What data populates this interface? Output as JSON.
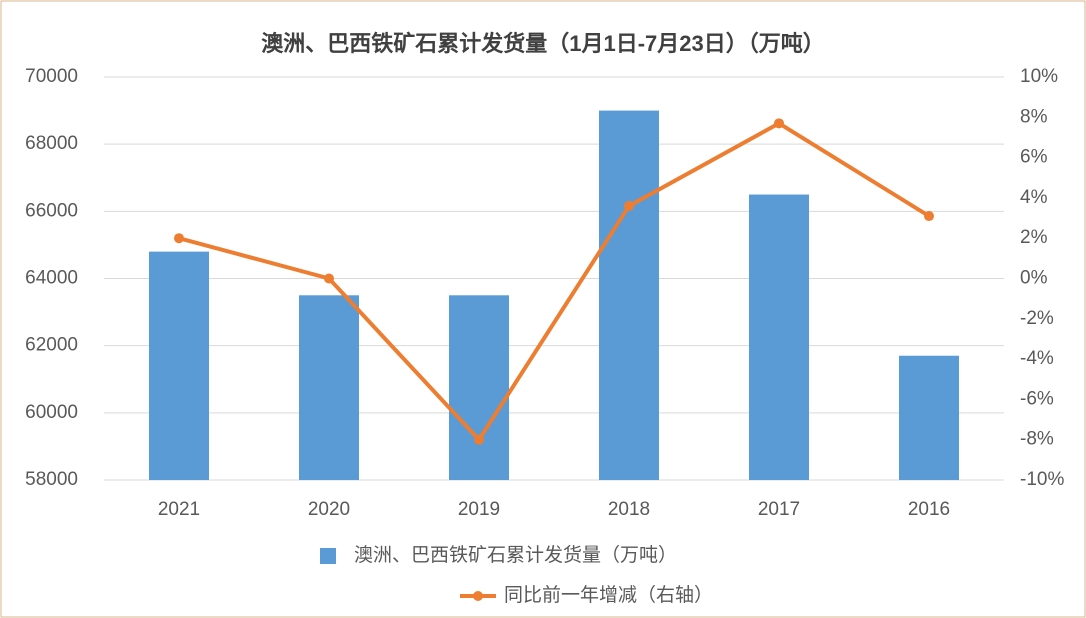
{
  "chart_data": {
    "type": "bar_line",
    "title": "澳洲、巴西铁矿石累计发货量（1月1日-7月23日）（万吨）",
    "categories": [
      "2021",
      "2020",
      "2019",
      "2018",
      "2017",
      "2016"
    ],
    "series": [
      {
        "name": "澳洲、巴西铁矿石累计发货量（万吨）",
        "type": "bar",
        "color": "#5b9bd5",
        "values": [
          64800,
          63500,
          63500,
          69000,
          66500,
          61700
        ]
      },
      {
        "name": "同比前一年增减（右轴）",
        "type": "line",
        "axis": "y2",
        "color": "#ed7d31",
        "values": [
          2.0,
          0.0,
          -8.0,
          3.6,
          7.7,
          3.1
        ]
      }
    ],
    "ylim": [
      58000,
      70000
    ],
    "yticks": [
      58000,
      60000,
      62000,
      64000,
      66000,
      68000,
      70000
    ],
    "y2lim": [
      -10,
      10
    ],
    "y2ticks": [
      {
        "value": -10,
        "label": "-10%"
      },
      {
        "value": -8,
        "label": "-8%"
      },
      {
        "value": -6,
        "label": "-6%"
      },
      {
        "value": -4,
        "label": "-4%"
      },
      {
        "value": -2,
        "label": "-2%"
      },
      {
        "value": 0,
        "label": "0%"
      },
      {
        "value": 2,
        "label": "2%"
      },
      {
        "value": 4,
        "label": "4%"
      },
      {
        "value": 6,
        "label": "6%"
      },
      {
        "value": 8,
        "label": "8%"
      },
      {
        "value": 10,
        "label": "10%"
      }
    ],
    "grid": true
  }
}
